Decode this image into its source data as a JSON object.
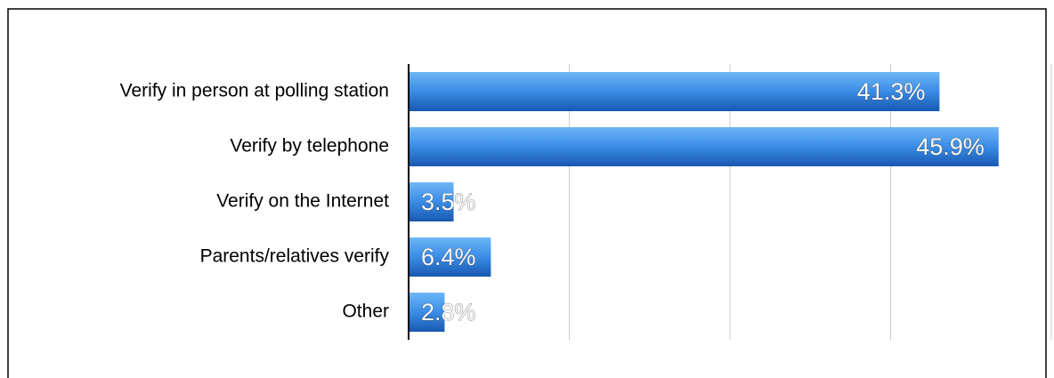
{
  "chart_data": {
    "type": "bar",
    "orientation": "horizontal",
    "categories": [
      "Verify in person at polling station",
      "Verify by telephone",
      "Verify on the Internet",
      "Parents/relatives verify",
      "Other"
    ],
    "values": [
      41.3,
      45.9,
      3.5,
      6.4,
      2.8
    ],
    "value_labels": [
      "41.3%",
      "45.9%",
      "3.5%",
      "6.4%",
      "2.8%"
    ],
    "color": "#2f7fd8",
    "xlim": [
      0,
      50
    ],
    "xticks": [
      0,
      12.5,
      25,
      37.5,
      50
    ],
    "grid": true
  }
}
